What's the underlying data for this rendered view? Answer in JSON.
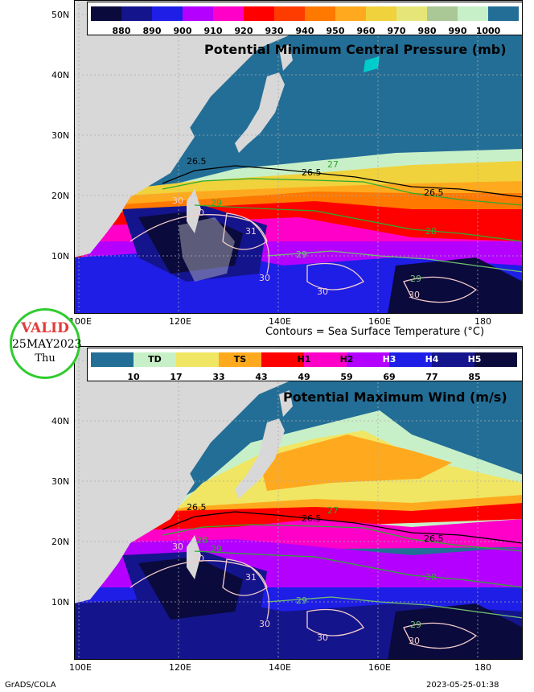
{
  "top_panel": {
    "title": "Potential Minimum Central Pressure (mb)",
    "legend_values": [
      "880",
      "890",
      "900",
      "910",
      "920",
      "930",
      "940",
      "950",
      "960",
      "970",
      "980",
      "990",
      "1000"
    ],
    "legend_colors": [
      "#0a0a3c",
      "#14148c",
      "#1e1ee6",
      "#b400ff",
      "#ff00c8",
      "#ff0000",
      "#ff3c00",
      "#ff7800",
      "#ffaa1e",
      "#f0d23c",
      "#e6e678",
      "#aac896",
      "#c8f0c8",
      "#236e96"
    ]
  },
  "bottom_panel": {
    "title": "Potential Maximum Wind (m/s)",
    "categories": [
      "TD",
      "TS",
      "H1",
      "H2",
      "H3",
      "H4",
      "H5"
    ],
    "legend_values": [
      "10",
      "17",
      "33",
      "43",
      "49",
      "59",
      "69",
      "77",
      "85"
    ],
    "legend_colors": [
      "#236e96",
      "#c8f0c8",
      "#f0e664",
      "#ffaa1e",
      "#ff0000",
      "#ff00c8",
      "#b400ff",
      "#1e1ee6",
      "#14148c",
      "#0a0a3c"
    ]
  },
  "contour_caption": "Contours = Sea Surface Temperature (°C)",
  "lat_labels": [
    "50N",
    "40N",
    "30N",
    "20N",
    "10N"
  ],
  "lon_labels": [
    "100E",
    "120E",
    "140E",
    "160E",
    "180"
  ],
  "contour_labels_top": [
    "26.5",
    "26.5",
    "26.5",
    "27",
    "28",
    "29",
    "29",
    "30",
    "30",
    "30",
    "31",
    "30",
    "29",
    "30"
  ],
  "contour_labels_bottom": [
    "26.5",
    "26.5",
    "26.5",
    "27",
    "28",
    "29",
    "29",
    "30",
    "30",
    "30",
    "31",
    "30",
    "29",
    "30",
    "28"
  ],
  "valid_badge": {
    "label": "VALID",
    "date": "25MAY2023",
    "day": "Thu"
  },
  "footer_left": "GrADS/COLA",
  "footer_right": "2023-05-25-01:38"
}
